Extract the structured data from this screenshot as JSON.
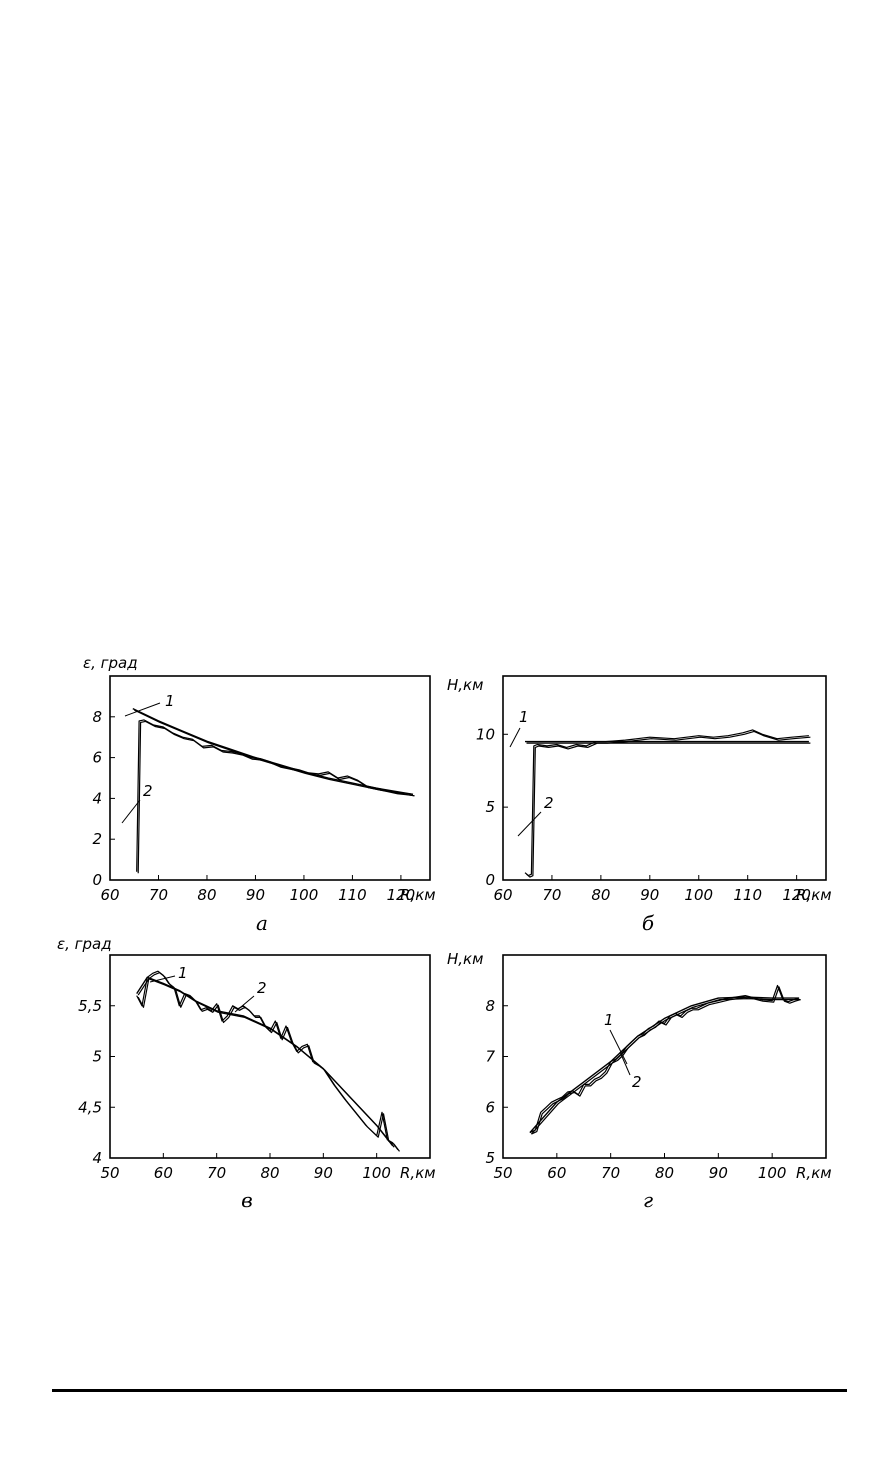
{
  "chart_data": [
    {
      "panel": "а",
      "type": "line",
      "ylabel": "ε, град",
      "xlabel": "R,км",
      "xlim": [
        60,
        126
      ],
      "ylim": [
        0,
        10
      ],
      "xticks": [
        60,
        70,
        80,
        90,
        100,
        110,
        120
      ],
      "xtick_labels": [
        "60",
        "70",
        "80",
        "90",
        "100",
        "110",
        "120"
      ],
      "yticks": [
        0,
        2,
        4,
        6,
        8
      ],
      "ytick_labels": [
        "0",
        "2",
        "4",
        "6",
        "8"
      ],
      "series": [
        {
          "name": "1",
          "x": [
            64.7,
            70,
            75,
            80,
            85,
            90,
            95,
            100,
            105,
            110,
            115,
            120,
            122.5
          ],
          "y": [
            8.4,
            7.8,
            7.3,
            6.8,
            6.4,
            6.0,
            5.65,
            5.3,
            5.0,
            4.75,
            4.5,
            4.3,
            4.2
          ]
        },
        {
          "name": "2",
          "x": [
            65.5,
            66,
            67,
            69,
            71,
            73,
            75,
            77,
            79,
            81,
            83,
            85,
            87,
            89,
            91,
            93,
            95,
            97,
            99,
            101,
            103,
            105,
            107,
            109,
            111,
            113,
            115,
            117,
            119,
            121,
            122.5
          ],
          "y": [
            0.4,
            7.8,
            7.85,
            7.6,
            7.5,
            7.2,
            7.0,
            6.9,
            6.55,
            6.6,
            6.35,
            6.3,
            6.2,
            6.0,
            5.95,
            5.8,
            5.6,
            5.5,
            5.4,
            5.25,
            5.2,
            5.3,
            5.0,
            5.1,
            4.9,
            4.6,
            4.5,
            4.4,
            4.3,
            4.25,
            4.2
          ]
        }
      ],
      "annotations": [
        "1",
        "2"
      ]
    },
    {
      "panel": "б",
      "type": "line",
      "ylabel": "H,км",
      "xlabel": "R,км",
      "xlim": [
        60,
        126
      ],
      "ylim": [
        0,
        14
      ],
      "xticks": [
        60,
        70,
        80,
        90,
        100,
        110,
        120
      ],
      "xtick_labels": [
        "60",
        "70",
        "80",
        "90",
        "100",
        "110",
        "120"
      ],
      "yticks": [
        0,
        5,
        10
      ],
      "ytick_labels": [
        "0",
        "5",
        "10"
      ],
      "series": [
        {
          "name": "1",
          "x": [
            64.5,
            122.5
          ],
          "y": [
            9.5,
            9.5
          ]
        },
        {
          "name": "2",
          "x": [
            64.5,
            65.2,
            65.8,
            66.3,
            67,
            69,
            71,
            73,
            75,
            77,
            79,
            81,
            85,
            90,
            95,
            100,
            103,
            106,
            109,
            111,
            113,
            116,
            119,
            122.5
          ],
          "y": [
            0.5,
            0.3,
            0.4,
            9.2,
            9.3,
            9.2,
            9.3,
            9.1,
            9.3,
            9.2,
            9.5,
            9.5,
            9.6,
            9.8,
            9.7,
            9.9,
            9.8,
            9.9,
            10.1,
            10.3,
            10.0,
            9.7,
            9.8,
            9.9
          ]
        }
      ],
      "annotations": [
        "1",
        "2"
      ]
    },
    {
      "panel": "в",
      "type": "line",
      "ylabel": "ε, град",
      "xlabel": "R,км",
      "xlim": [
        50,
        110
      ],
      "ylim": [
        4,
        6
      ],
      "xticks": [
        50,
        60,
        70,
        80,
        90,
        100
      ],
      "xtick_labels": [
        "50",
        "60",
        "70",
        "80",
        "90",
        "100"
      ],
      "yticks": [
        4,
        4.5,
        5,
        5.5
      ],
      "ytick_labels": [
        "4",
        "4,5",
        "5",
        "5,5"
      ],
      "series": [
        {
          "name": "1",
          "x": [
            55,
            57,
            60,
            63,
            66,
            70,
            75,
            80,
            85,
            90,
            95,
            100,
            103
          ],
          "y": [
            5.62,
            5.78,
            5.72,
            5.65,
            5.55,
            5.45,
            5.4,
            5.28,
            5.1,
            4.88,
            4.6,
            4.32,
            4.12
          ]
        },
        {
          "name": "2",
          "x": [
            55,
            56,
            57,
            58,
            59,
            60,
            61,
            62,
            63,
            64,
            65,
            66,
            67,
            68,
            69,
            70,
            71,
            72,
            73,
            74,
            75,
            76,
            77,
            78,
            79,
            80,
            81,
            82,
            83,
            84,
            85,
            86,
            87,
            88,
            89,
            90,
            92,
            94,
            96,
            98,
            100,
            101,
            102,
            103,
            104
          ],
          "y": [
            5.6,
            5.5,
            5.78,
            5.82,
            5.84,
            5.8,
            5.72,
            5.68,
            5.5,
            5.62,
            5.6,
            5.55,
            5.46,
            5.48,
            5.45,
            5.52,
            5.35,
            5.4,
            5.5,
            5.47,
            5.5,
            5.46,
            5.4,
            5.4,
            5.3,
            5.25,
            5.35,
            5.18,
            5.3,
            5.15,
            5.05,
            5.1,
            5.12,
            4.95,
            4.92,
            4.88,
            4.72,
            4.58,
            4.45,
            4.32,
            4.22,
            4.45,
            4.18,
            4.15,
            4.08
          ]
        }
      ],
      "annotations": [
        "1",
        "2"
      ]
    },
    {
      "panel": "г",
      "type": "line",
      "ylabel": "H,км",
      "xlabel": "R,км",
      "xlim": [
        50,
        110
      ],
      "ylim": [
        5,
        9
      ],
      "xticks": [
        50,
        60,
        70,
        80,
        90,
        100
      ],
      "xtick_labels": [
        "50",
        "60",
        "70",
        "80",
        "90",
        "100"
      ],
      "yticks": [
        5,
        6,
        7,
        8
      ],
      "ytick_labels": [
        "5",
        "6",
        "7",
        "8"
      ],
      "series": [
        {
          "name": "1",
          "x": [
            55,
            60,
            65,
            70,
            75,
            80,
            85,
            90,
            95,
            100,
            105
          ],
          "y": [
            5.5,
            6.1,
            6.5,
            6.9,
            7.4,
            7.75,
            8.0,
            8.15,
            8.17,
            8.15,
            8.15
          ]
        },
        {
          "name": "2",
          "x": [
            55,
            56,
            57,
            58,
            59,
            60,
            61,
            62,
            63,
            64,
            65,
            66,
            67,
            68,
            69,
            70,
            71,
            72,
            73,
            74,
            75,
            76,
            77,
            78,
            79,
            80,
            81,
            82,
            83,
            84,
            85,
            86,
            88,
            90,
            92,
            95,
            98,
            100,
            101,
            102,
            103,
            104,
            105
          ],
          "y": [
            5.5,
            5.55,
            5.9,
            6.0,
            6.1,
            6.15,
            6.2,
            6.3,
            6.32,
            6.25,
            6.45,
            6.45,
            6.55,
            6.6,
            6.7,
            6.9,
            6.95,
            7.05,
            7.2,
            7.3,
            7.4,
            7.45,
            7.55,
            7.6,
            7.7,
            7.65,
            7.8,
            7.85,
            7.8,
            7.9,
            7.95,
            7.95,
            8.05,
            8.1,
            8.15,
            8.2,
            8.12,
            8.1,
            8.4,
            8.12,
            8.08,
            8.12,
            8.15
          ]
        }
      ],
      "annotations": [
        "1",
        "2"
      ]
    }
  ]
}
